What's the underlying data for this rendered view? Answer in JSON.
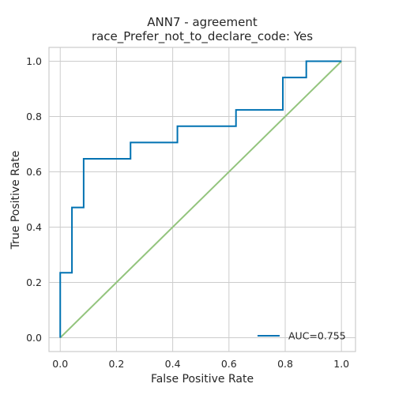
{
  "chart_data": {
    "type": "line",
    "title": "ANN7 - agreement",
    "subtitle": "race_Prefer_not_to_declare_code: Yes",
    "xlabel": "False Positive Rate",
    "ylabel": "True Positive Rate",
    "xlim": [
      -0.04,
      1.05
    ],
    "ylim": [
      -0.05,
      1.05
    ],
    "xticks": [
      "0.0",
      "0.2",
      "0.4",
      "0.6",
      "0.8",
      "1.0"
    ],
    "yticks": [
      "0.0",
      "0.2",
      "0.4",
      "0.6",
      "0.8",
      "1.0"
    ],
    "grid": true,
    "legend_position": "lower-right",
    "series": [
      {
        "name": "AUC=0.755",
        "color": "#0072b2",
        "x": [
          0.0,
          0.0,
          0.0417,
          0.0417,
          0.0833,
          0.0833,
          0.25,
          0.25,
          0.4167,
          0.4167,
          0.625,
          0.625,
          0.7917,
          0.7917,
          0.875,
          0.875,
          1.0
        ],
        "y": [
          0.0,
          0.235,
          0.235,
          0.471,
          0.471,
          0.647,
          0.647,
          0.706,
          0.706,
          0.765,
          0.765,
          0.824,
          0.824,
          0.941,
          0.941,
          1.0,
          1.0
        ]
      },
      {
        "name": "",
        "color": "#93c47d",
        "x": [
          0.0,
          1.0
        ],
        "y": [
          0.0,
          1.0
        ]
      }
    ]
  }
}
